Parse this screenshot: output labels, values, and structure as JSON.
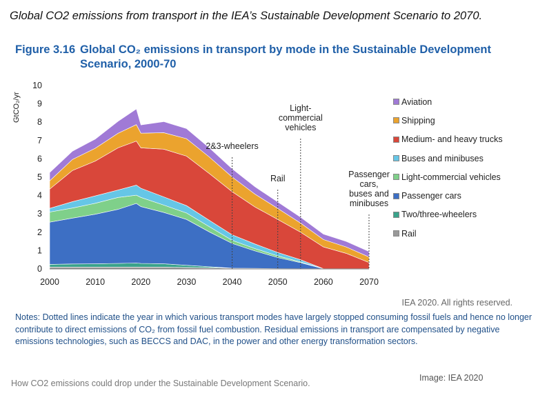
{
  "headline": "Global CO2 emissions from transport in the IEA’s Sustainable Development Scenario to 2070.",
  "figure": {
    "number": "Figure 3.16",
    "title_line1": "Global CO₂ emissions in transport by mode in the Sustainable Development",
    "title_line2": "Scenario, 2000-70"
  },
  "rights": "IEA 2020. All rights reserved.",
  "notes": "Notes: Dotted lines indicate the year in which various transport modes have largely stopped consuming fossil fuels and hence no longer contribute to direct emissions of CO₂ from fossil fuel combustion. Residual emissions in transport are compensated by negative emissions technologies, such as BECCS and DAC, in the power and other energy transformation sectors.",
  "caption": "How CO2 emissions could drop under the Sustainable Development Scenario.",
  "credit": "Image: IEA 2020",
  "chart_data": {
    "type": "area",
    "stacked": true,
    "ylabel": "GtCO₂/yr",
    "xlabel": "",
    "xlim": [
      2000,
      2070
    ],
    "ylim": [
      0,
      10
    ],
    "xticks": [
      2000,
      2010,
      2020,
      2030,
      2040,
      2050,
      2060,
      2070
    ],
    "yticks": [
      0,
      1,
      2,
      3,
      4,
      5,
      6,
      7,
      8,
      9,
      10
    ],
    "grid": false,
    "legend_position": "right",
    "x": [
      2000,
      2005,
      2010,
      2015,
      2019,
      2020,
      2025,
      2030,
      2035,
      2040,
      2045,
      2050,
      2055,
      2060,
      2065,
      2070
    ],
    "series": [
      {
        "name": "Rail",
        "color": "#999999",
        "values": [
          0.1,
          0.1,
          0.1,
          0.1,
          0.1,
          0.1,
          0.1,
          0.08,
          0.06,
          0.04,
          0.03,
          0.02,
          0.01,
          0.01,
          0.01,
          0.01
        ]
      },
      {
        "name": "Two/three-wheelers",
        "color": "#3aa38b",
        "values": [
          0.15,
          0.17,
          0.18,
          0.2,
          0.22,
          0.2,
          0.18,
          0.12,
          0.06,
          0.0,
          0.0,
          0.0,
          0.0,
          0.0,
          0.0,
          0.0
        ]
      },
      {
        "name": "Passenger cars",
        "color": "#3d6fc4",
        "values": [
          2.3,
          2.5,
          2.7,
          2.95,
          3.25,
          3.1,
          2.8,
          2.5,
          1.9,
          1.35,
          0.95,
          0.6,
          0.33,
          0.0,
          0.0,
          0.0
        ]
      },
      {
        "name": "Light-commercial vehicles",
        "color": "#7fd08a",
        "values": [
          0.55,
          0.55,
          0.6,
          0.65,
          0.45,
          0.5,
          0.4,
          0.35,
          0.28,
          0.17,
          0.13,
          0.09,
          0.04,
          0.0,
          0.0,
          0.0
        ]
      },
      {
        "name": "Buses and minibuses",
        "color": "#66c6e6",
        "values": [
          0.2,
          0.35,
          0.4,
          0.4,
          0.55,
          0.5,
          0.45,
          0.4,
          0.35,
          0.3,
          0.25,
          0.19,
          0.12,
          0.0,
          0.0,
          0.0
        ]
      },
      {
        "name": "Medium- and heavy trucks",
        "color": "#d9473a",
        "values": [
          1.05,
          1.7,
          1.9,
          2.3,
          2.4,
          2.2,
          2.6,
          2.7,
          2.55,
          2.35,
          2.02,
          1.8,
          1.5,
          1.19,
          0.84,
          0.34
        ]
      },
      {
        "name": "Shipping",
        "color": "#eba32e",
        "values": [
          0.45,
          0.6,
          0.7,
          0.8,
          0.9,
          0.8,
          0.9,
          0.95,
          0.9,
          0.8,
          0.7,
          0.6,
          0.5,
          0.4,
          0.35,
          0.3
        ]
      },
      {
        "name": "Aviation",
        "color": "#a07ad6",
        "values": [
          0.45,
          0.45,
          0.5,
          0.65,
          0.85,
          0.45,
          0.6,
          0.55,
          0.5,
          0.45,
          0.4,
          0.35,
          0.32,
          0.3,
          0.3,
          0.3
        ]
      }
    ],
    "annotations": [
      {
        "text": [
          "2&3-wheelers"
        ],
        "x": 2040
      },
      {
        "text": [
          "Rail"
        ],
        "x": 2050
      },
      {
        "text": [
          "Light-",
          "commercial",
          "vehicles"
        ],
        "x": 2055
      },
      {
        "text": [
          "Passenger",
          "cars,",
          "buses and",
          "minibuses"
        ],
        "x": 2070
      }
    ],
    "legend": [
      "Aviation",
      "Shipping",
      "Medium- and heavy trucks",
      "Buses and minibuses",
      "Light-commercial vehicles",
      "Passenger cars",
      "Two/three-wheelers",
      "Rail"
    ]
  }
}
